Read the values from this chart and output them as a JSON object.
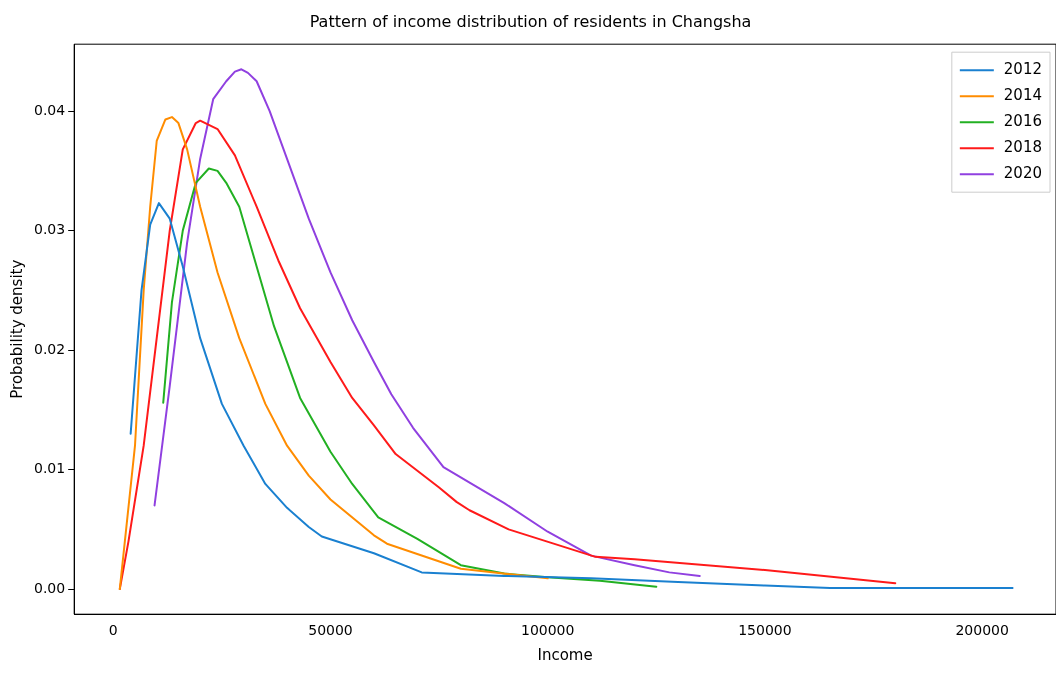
{
  "chart_data": {
    "type": "line",
    "title": "Pattern of income distribution of residents in Changsha",
    "xlabel": "Income",
    "ylabel": "Probability density",
    "xlim": [
      -9000,
      217000
    ],
    "ylim": [
      -0.0021,
      0.0456
    ],
    "xticks": [
      0,
      50000,
      100000,
      150000,
      200000
    ],
    "yticks": [
      {
        "value": 0,
        "label": "0.00"
      },
      {
        "value": 0.01,
        "label": "0.01"
      },
      {
        "value": 0.02,
        "label": "0.02"
      },
      {
        "value": 0.03,
        "label": "0.03"
      },
      {
        "value": 0.04,
        "label": "0.04"
      }
    ],
    "grid": false,
    "legend": "top right",
    "marker": "none",
    "line_style": "solid",
    "series": [
      {
        "name": "2012",
        "color": "#1a80d0",
        "x": [
          4000,
          6500,
          8500,
          10500,
          13000,
          16000,
          20000,
          25000,
          30000,
          35000,
          40000,
          45000,
          48000,
          60000,
          71000,
          90000,
          110000,
          130000,
          150000,
          165000,
          185000,
          207000
        ],
        "values": [
          0.013,
          0.025,
          0.0305,
          0.0323,
          0.031,
          0.027,
          0.021,
          0.0155,
          0.012,
          0.0088,
          0.0068,
          0.0052,
          0.0044,
          0.003,
          0.0014,
          0.0011,
          0.0009,
          0.0006,
          0.0003,
          0.0001,
          0.0001,
          0.0001
        ]
      },
      {
        "name": "2014",
        "color": "#ff8c00",
        "x": [
          1500,
          5000,
          7000,
          8500,
          10000,
          12000,
          13500,
          15000,
          17000,
          20000,
          24000,
          29000,
          35000,
          40000,
          45000,
          50000,
          60000,
          63000,
          80000,
          100000
        ],
        "values": [
          0,
          0.012,
          0.025,
          0.032,
          0.0375,
          0.0393,
          0.0395,
          0.039,
          0.0368,
          0.032,
          0.0265,
          0.021,
          0.0155,
          0.012,
          0.0095,
          0.0075,
          0.0045,
          0.0038,
          0.0017,
          0.0009
        ]
      },
      {
        "name": "2016",
        "color": "#22b022",
        "x": [
          11500,
          13500,
          16000,
          19000,
          22000,
          24000,
          26000,
          29000,
          33000,
          37000,
          43000,
          50000,
          55000,
          61000,
          70000,
          80000,
          90000,
          100000,
          112000,
          125000
        ],
        "values": [
          0.0156,
          0.024,
          0.03,
          0.034,
          0.0352,
          0.035,
          0.034,
          0.032,
          0.027,
          0.022,
          0.016,
          0.0115,
          0.0088,
          0.006,
          0.0042,
          0.002,
          0.0013,
          0.001,
          0.0007,
          0.0002
        ]
      },
      {
        "name": "2018",
        "color": "#ff1a1a",
        "x": [
          1500,
          3500,
          7000,
          10000,
          13000,
          16000,
          19000,
          20000,
          24000,
          28000,
          33000,
          38000,
          43000,
          50000,
          55000,
          60000,
          65000,
          75000,
          79000,
          82000,
          91000,
          111000,
          120000,
          150000,
          180000
        ],
        "values": [
          0,
          0.004,
          0.012,
          0.021,
          0.03,
          0.0368,
          0.039,
          0.0392,
          0.0385,
          0.0363,
          0.032,
          0.0275,
          0.0235,
          0.019,
          0.016,
          0.0137,
          0.0113,
          0.0085,
          0.0073,
          0.0066,
          0.005,
          0.0027,
          0.0025,
          0.0016,
          0.0005
        ]
      },
      {
        "name": "2020",
        "color": "#9040e0",
        "x": [
          9500,
          13000,
          17000,
          20000,
          23000,
          26000,
          28000,
          29500,
          31000,
          33000,
          36000,
          40000,
          45000,
          50000,
          55000,
          60000,
          64000,
          69000,
          76000,
          90000,
          100000,
          110000,
          120000,
          128000,
          135000
        ],
        "values": [
          0.007,
          0.017,
          0.029,
          0.036,
          0.041,
          0.0425,
          0.0433,
          0.0435,
          0.0432,
          0.0425,
          0.04,
          0.036,
          0.031,
          0.0265,
          0.0225,
          0.019,
          0.0163,
          0.0135,
          0.0102,
          0.0072,
          0.0048,
          0.0028,
          0.002,
          0.0014,
          0.0011
        ]
      }
    ]
  }
}
